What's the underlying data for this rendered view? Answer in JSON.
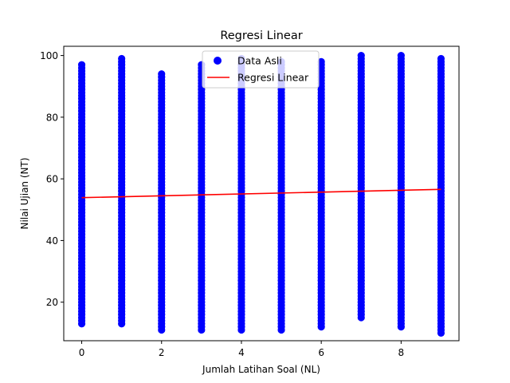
{
  "chart_data": {
    "type": "scatter",
    "title": "Regresi Linear",
    "xlabel": "Jumlah Latihan Soal (NL)",
    "ylabel": "Nilai Ujian (NT)",
    "xlim": [
      -0.45,
      9.45
    ],
    "ylim": [
      7.5,
      103
    ],
    "xticks": [
      0,
      2,
      4,
      6,
      8
    ],
    "yticks": [
      20,
      40,
      60,
      80,
      100
    ],
    "grid": false,
    "legend_position": "top-center",
    "series": [
      {
        "name": "Data Asli",
        "kind": "scatter",
        "color": "#0000ff",
        "columns": [
          {
            "x": 0,
            "y_min": 13,
            "y_max": 97
          },
          {
            "x": 1,
            "y_min": 13,
            "y_max": 99
          },
          {
            "x": 2,
            "y_min": 11,
            "y_max": 94
          },
          {
            "x": 3,
            "y_min": 11,
            "y_max": 97
          },
          {
            "x": 4,
            "y_min": 11,
            "y_max": 99
          },
          {
            "x": 5,
            "y_min": 11,
            "y_max": 98
          },
          {
            "x": 6,
            "y_min": 12,
            "y_max": 98
          },
          {
            "x": 7,
            "y_min": 15,
            "y_max": 100
          },
          {
            "x": 8,
            "y_min": 12,
            "y_max": 100
          },
          {
            "x": 9,
            "y_min": 10,
            "y_max": 99
          }
        ]
      },
      {
        "name": "Regresi Linear",
        "kind": "line",
        "color": "#ff0000",
        "x": [
          0,
          9
        ],
        "y": [
          53.9,
          56.6
        ]
      }
    ]
  }
}
